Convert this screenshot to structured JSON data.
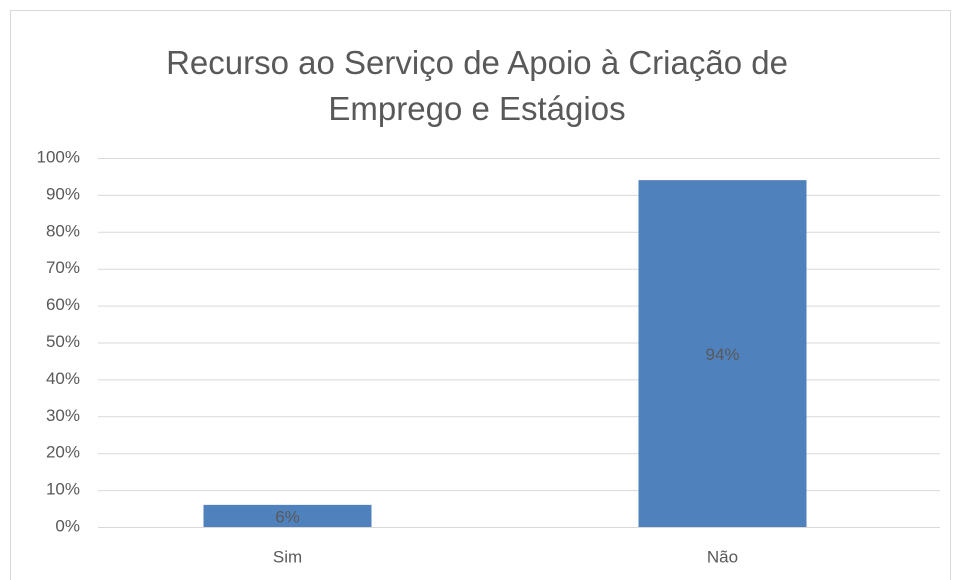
{
  "chart_data": {
    "type": "bar",
    "title": "Recurso ao Serviço de Apoio à Criação de Emprego e Estágios",
    "categories": [
      "Sim",
      "Não"
    ],
    "values": [
      6,
      94
    ],
    "value_labels": [
      "6%",
      "94%"
    ],
    "color": "#4f81bd",
    "ylim": [
      0,
      100
    ],
    "yticks": [
      {
        "value": 0,
        "label": "0%"
      },
      {
        "value": 10,
        "label": "10%"
      },
      {
        "value": 20,
        "label": "20%"
      },
      {
        "value": 30,
        "label": "30%"
      },
      {
        "value": 40,
        "label": "40%"
      },
      {
        "value": 50,
        "label": "50%"
      },
      {
        "value": 60,
        "label": "60%"
      },
      {
        "value": 70,
        "label": "70%"
      },
      {
        "value": 80,
        "label": "80%"
      },
      {
        "value": 90,
        "label": "90%"
      },
      {
        "value": 100,
        "label": "100%"
      }
    ],
    "grid": true
  }
}
